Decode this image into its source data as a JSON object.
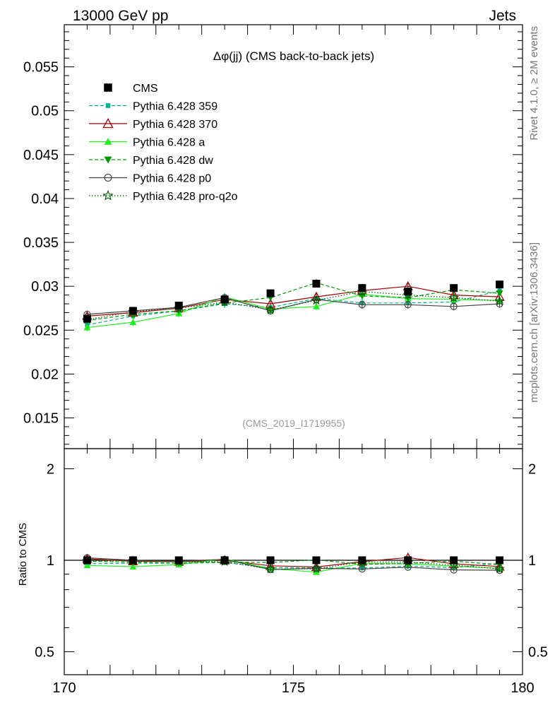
{
  "header": {
    "left": "13000 GeV pp",
    "right": "Jets"
  },
  "side": {
    "top": "Rivet 4.1.0, ≥ 2M events",
    "bottom": "mcplots.cern.ch [arXiv:1306.3436]"
  },
  "colors": {
    "cms": "#000000",
    "p359": "#00b386",
    "p370": "#a00000",
    "pa": "#22ee22",
    "pdw": "#009900",
    "pp0": "#444444",
    "pq2o": "#005500",
    "watermark": "#999999"
  },
  "chart_data": [
    {
      "type": "scatter",
      "title": "Δφ(jj) (CMS back-to-back jets)",
      "watermark": "(CMS_2019_I1719955)",
      "xlim": [
        170,
        180
      ],
      "ylim": [
        0.0115,
        0.0598
      ],
      "y_tick_labels": [
        "0.015",
        "0.02",
        "0.025",
        "0.03",
        "0.035",
        "0.04",
        "0.045",
        "0.05",
        "0.055"
      ],
      "x": [
        170.5,
        171.5,
        172.5,
        173.5,
        174.5,
        175.5,
        176.5,
        177.5,
        178.5,
        179.5
      ],
      "series": [
        {
          "name": "CMS",
          "key": "cms",
          "marker": "square",
          "line": "none",
          "values": [
            0.0263,
            0.0272,
            0.0278,
            0.0285,
            0.0292,
            0.0303,
            0.0298,
            0.0294,
            0.0298,
            0.0302
          ]
        },
        {
          "name": "Pythia 6.428 359",
          "key": "p359",
          "marker": "small-square",
          "line": "dashed",
          "values": [
            0.0256,
            0.0266,
            0.0272,
            0.028,
            0.0276,
            0.0286,
            0.0281,
            0.0281,
            0.0282,
            0.0295
          ]
        },
        {
          "name": "Pythia 6.428 370",
          "key": "p370",
          "marker": "open-triangle",
          "line": "solid",
          "values": [
            0.0266,
            0.027,
            0.0275,
            0.0285,
            0.028,
            0.0288,
            0.0295,
            0.03,
            0.029,
            0.0288
          ]
        },
        {
          "name": "Pythia 6.428 a",
          "key": "pa",
          "marker": "triangle",
          "line": "solid",
          "values": [
            0.0253,
            0.0259,
            0.0269,
            0.0288,
            0.0274,
            0.0277,
            0.0291,
            0.0286,
            0.0285,
            0.0284
          ]
        },
        {
          "name": "Pythia 6.428 dw",
          "key": "pdw",
          "marker": "down-triangle",
          "line": "dashed",
          "values": [
            0.0261,
            0.0268,
            0.0272,
            0.0281,
            0.0287,
            0.0304,
            0.0289,
            0.0287,
            0.0296,
            0.0292
          ]
        },
        {
          "name": "Pythia 6.428 p0",
          "key": "pp0",
          "marker": "open-circle",
          "line": "solid",
          "values": [
            0.0268,
            0.0272,
            0.0276,
            0.0287,
            0.0272,
            0.0285,
            0.0279,
            0.0279,
            0.0277,
            0.028
          ]
        },
        {
          "name": "Pythia 6.428 pro-q2o",
          "key": "pq2o",
          "marker": "star",
          "line": "dotted",
          "values": [
            0.0262,
            0.0271,
            0.0275,
            0.0282,
            0.0273,
            0.0284,
            0.0294,
            0.029,
            0.0287,
            0.0283
          ]
        }
      ]
    },
    {
      "type": "scatter",
      "ylabel": "Ratio to CMS",
      "xlim": [
        170,
        180
      ],
      "ylim": [
        0.42,
        2.33
      ],
      "y_tick_labels": [
        "0.5",
        "1",
        "2"
      ],
      "x_tick_labels": [
        "170",
        "175",
        "180"
      ],
      "reference": "CMS"
    }
  ]
}
